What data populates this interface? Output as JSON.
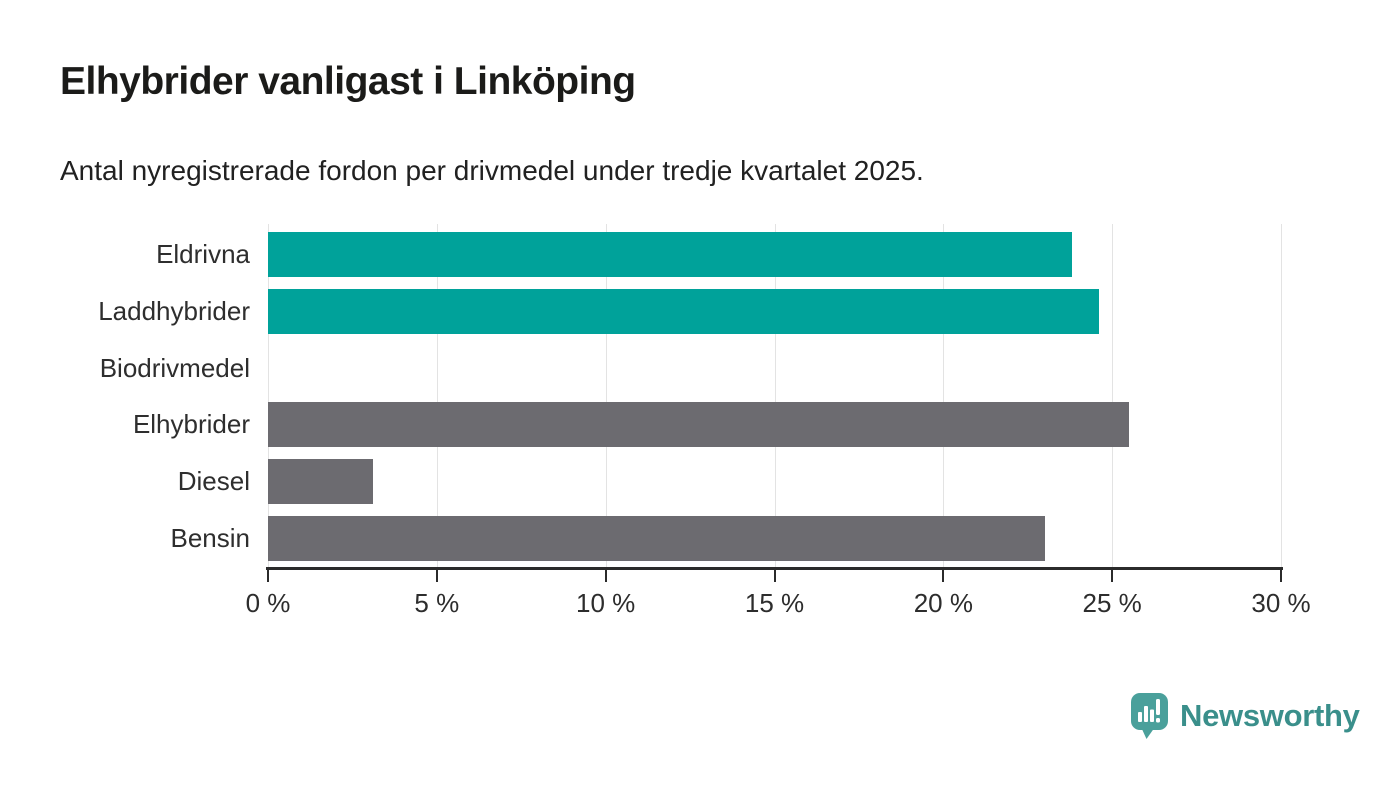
{
  "header": {
    "title": "Elhybrider vanligast i Linköping",
    "subtitle": "Antal nyregistrerade fordon per drivmedel under tredje kvartalet 2025."
  },
  "chart_data": {
    "type": "bar",
    "orientation": "horizontal",
    "title": "Elhybrider vanligast i Linköping",
    "subtitle": "Antal nyregistrerade fordon per drivmedel under tredje kvartalet 2025.",
    "categories": [
      "Eldrivna",
      "Laddhybrider",
      "Biodrivmedel",
      "Elhybrider",
      "Diesel",
      "Bensin"
    ],
    "values": [
      23.8,
      24.6,
      0,
      25.5,
      3.1,
      23.0
    ],
    "unit": "%",
    "bar_colors": [
      "#00a29a",
      "#00a29a",
      "#00a29a",
      "#6c6b70",
      "#6c6b70",
      "#6c6b70"
    ],
    "xlim": [
      0,
      30
    ],
    "x_ticks": [
      0,
      5,
      10,
      15,
      20,
      25,
      30
    ],
    "x_tick_labels": [
      "0 %",
      "5 %",
      "10 %",
      "15 %",
      "20 %",
      "25 %",
      "30 %"
    ],
    "grid": true,
    "legend": false
  },
  "colors": {
    "highlight_teal": "#00a29a",
    "neutral_gray": "#6c6b70",
    "gridline": "#e3e3e3",
    "axis": "#2b2b2b",
    "logo_icon": "#4aa09b",
    "logo_text": "#3a8f8b"
  },
  "footer": {
    "brand": "Newsworthy"
  }
}
